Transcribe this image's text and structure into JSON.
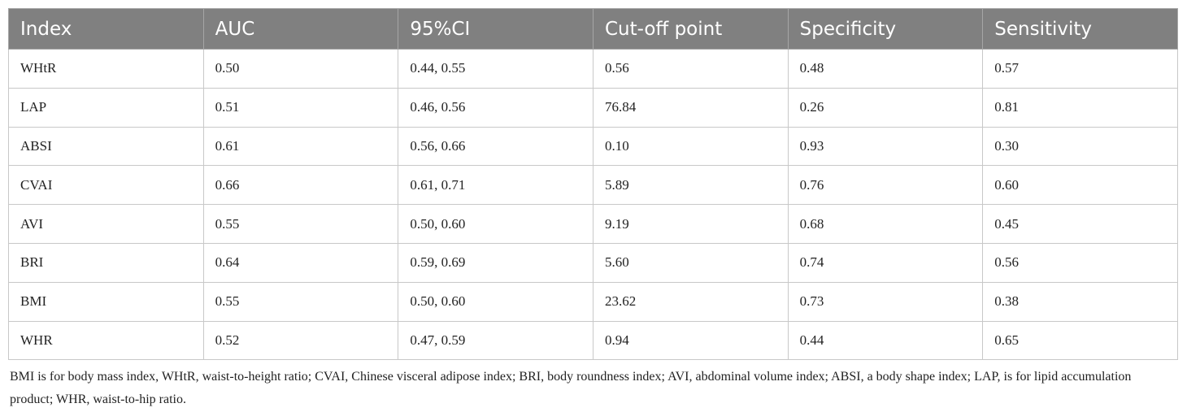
{
  "table": {
    "header": [
      "Index",
      "AUC",
      "95%CI",
      "Cut-off point",
      "Specificity",
      "Sensitivity"
    ],
    "rows": [
      [
        "WHtR",
        "0.50",
        "0.44, 0.55",
        "0.56",
        "0.48",
        "0.57"
      ],
      [
        "LAP",
        "0.51",
        "0.46, 0.56",
        "76.84",
        "0.26",
        "0.81"
      ],
      [
        "ABSI",
        "0.61",
        "0.56, 0.66",
        "0.10",
        "0.93",
        "0.30"
      ],
      [
        "CVAI",
        "0.66",
        "0.61, 0.71",
        "5.89",
        "0.76",
        "0.60"
      ],
      [
        "AVI",
        "0.55",
        "0.50, 0.60",
        "9.19",
        "0.68",
        "0.45"
      ],
      [
        "BRI",
        "0.64",
        "0.59, 0.69",
        "5.60",
        "0.74",
        "0.56"
      ],
      [
        "BMI",
        "0.55",
        "0.50, 0.60",
        "23.62",
        "0.73",
        "0.38"
      ],
      [
        "WHR",
        "0.52",
        "0.47, 0.59",
        "0.94",
        "0.44",
        "0.65"
      ]
    ],
    "footnote": "BMI is for body mass index, WHtR, waist-to-height ratio; CVAI, Chinese visceral adipose index; BRI, body roundness index; AVI, abdominal volume index; ABSI, a body shape index; LAP, is for lipid accumulation product; WHR, waist-to-hip ratio."
  }
}
